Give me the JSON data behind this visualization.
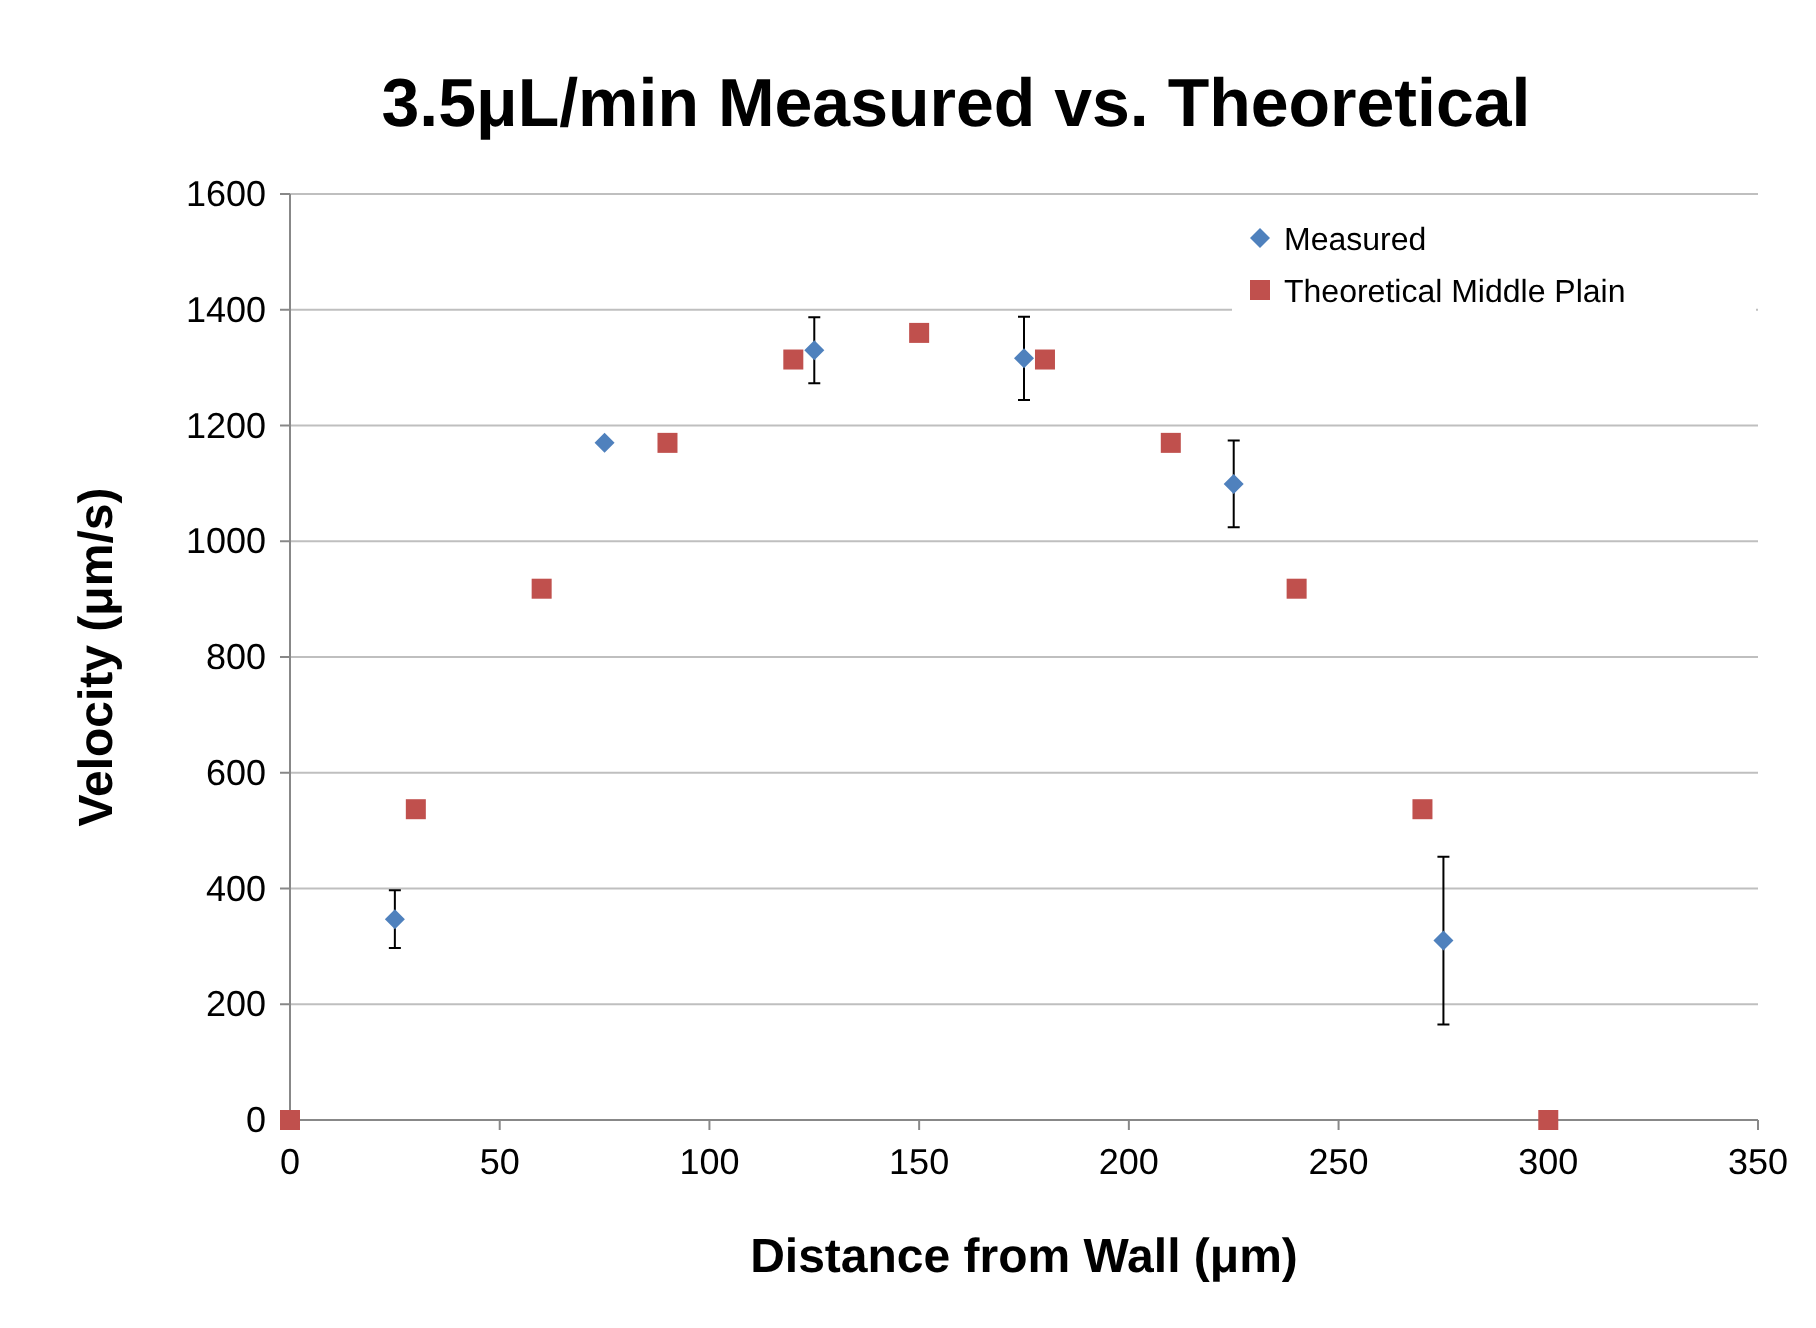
{
  "chart_data": {
    "type": "scatter",
    "title": "3.5μL/min Measured vs. Theoretical",
    "xlabel": "Distance from Wall (μm)",
    "ylabel": "Velocity (μm/s)",
    "xlim": [
      0,
      350
    ],
    "xticks": [
      0,
      50,
      100,
      150,
      200,
      250,
      300,
      350
    ],
    "ylim": [
      0,
      1600
    ],
    "yticks": [
      0,
      200,
      400,
      600,
      800,
      1000,
      1200,
      1400,
      1600
    ],
    "grid": "y",
    "legend": "top right",
    "series": [
      {
        "name": "Measured",
        "color": "#4f81bd",
        "marker": "diamond",
        "x": [
          25,
          75,
          125,
          175,
          225,
          275
        ],
        "values": [
          347,
          1170,
          1330,
          1316,
          1099,
          310
        ],
        "errors": [
          50,
          null,
          57,
          72,
          75,
          145
        ]
      },
      {
        "name": "Theoretical Middle Plain",
        "color": "#c0504d",
        "marker": "square",
        "x": [
          0,
          30,
          60,
          90,
          120,
          150,
          180,
          210,
          240,
          270,
          300
        ],
        "values": [
          0,
          537,
          918,
          1170,
          1314,
          1360,
          1314,
          1170,
          918,
          537,
          0
        ]
      }
    ]
  }
}
